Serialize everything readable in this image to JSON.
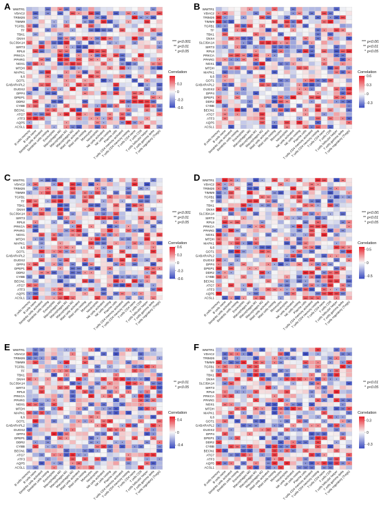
{
  "genes": [
    "WWTR1",
    "VDAC2",
    "TRIM26",
    "TIMM9",
    "TGFB1",
    "TF",
    "TBK1",
    "SNX4",
    "SLC39A14",
    "SIRT3",
    "RPL8",
    "PRKCA",
    "PPARG",
    "NOX1",
    "MTDH",
    "MAPK1",
    "IL6",
    "GOT1",
    "GABARAPL2",
    "DUOX2",
    "DPP4",
    "DPEP1",
    "DDR2",
    "CYBB",
    "BECN1",
    "ATG7",
    "ATF3",
    "AQP5",
    "ACSL1"
  ],
  "cells": [
    "B cells memory",
    "B cells naive",
    "Dendritic cells activated",
    "Dendritic cells resting",
    "Eosinophils",
    "Macrophages M0",
    "Macrophages M1",
    "Macrophages M2",
    "Mast cells activated",
    "Mast cells resting",
    "Monocytes",
    "Neutrophils",
    "NK cells activated",
    "NK cells resting",
    "Plasma cells",
    "T cells CD4 memory activated",
    "T cells CD4 memory resting",
    "T cells CD4 naive",
    "T cells CD8",
    "T cells follicular helper",
    "T cells gamma delta",
    "T cells regulatory (Tregs)"
  ],
  "legend_title": "Correlation",
  "sig_levels": {
    "three": {
      "mark": "***",
      "text": "p<0.001"
    },
    "two": {
      "mark": "**",
      "text": "p<0.01"
    },
    "one": {
      "mark": "*",
      "text": "p<0.05"
    }
  },
  "colors": {
    "low": "#3b4cc0",
    "mid": "#f7f7f7",
    "high": "#e8202a",
    "grid": "#d8d8d8"
  },
  "chart_data": [
    {
      "type": "heatmap",
      "panel": "A",
      "seed": 11,
      "scale_ticks": [
        0.3,
        0,
        -0.3,
        -0.6
      ],
      "range": [
        -0.6,
        0.6
      ],
      "sig_levels": [
        "***",
        "**",
        "*"
      ]
    },
    {
      "type": "heatmap",
      "panel": "B",
      "seed": 23,
      "scale_ticks": [
        0.6,
        0.3,
        0,
        -0.3
      ],
      "range": [
        -0.45,
        0.6
      ],
      "sig_levels": [
        "***",
        "**",
        "*"
      ]
    },
    {
      "type": "heatmap",
      "panel": "C",
      "seed": 37,
      "scale_ticks": [
        0.6,
        0.3,
        0,
        -0.3,
        -0.6
      ],
      "range": [
        -0.6,
        0.6
      ],
      "sig_levels": [
        "***",
        "**",
        "*"
      ]
    },
    {
      "type": "heatmap",
      "panel": "D",
      "seed": 41,
      "scale_ticks": [
        0.5,
        0,
        -0.5
      ],
      "range": [
        -0.6,
        0.6
      ],
      "sig_levels": [
        "***",
        "**",
        "*"
      ]
    },
    {
      "type": "heatmap",
      "panel": "E",
      "seed": 53,
      "scale_ticks": [
        0.4,
        0,
        -0.4
      ],
      "range": [
        -0.5,
        0.5
      ],
      "sig_levels": [
        "**",
        "*"
      ]
    },
    {
      "type": "heatmap",
      "panel": "F",
      "seed": 67,
      "scale_ticks": [
        0.3,
        0,
        -0.3
      ],
      "range": [
        -0.4,
        0.4
      ],
      "sig_levels": [
        "**",
        "*"
      ]
    }
  ]
}
